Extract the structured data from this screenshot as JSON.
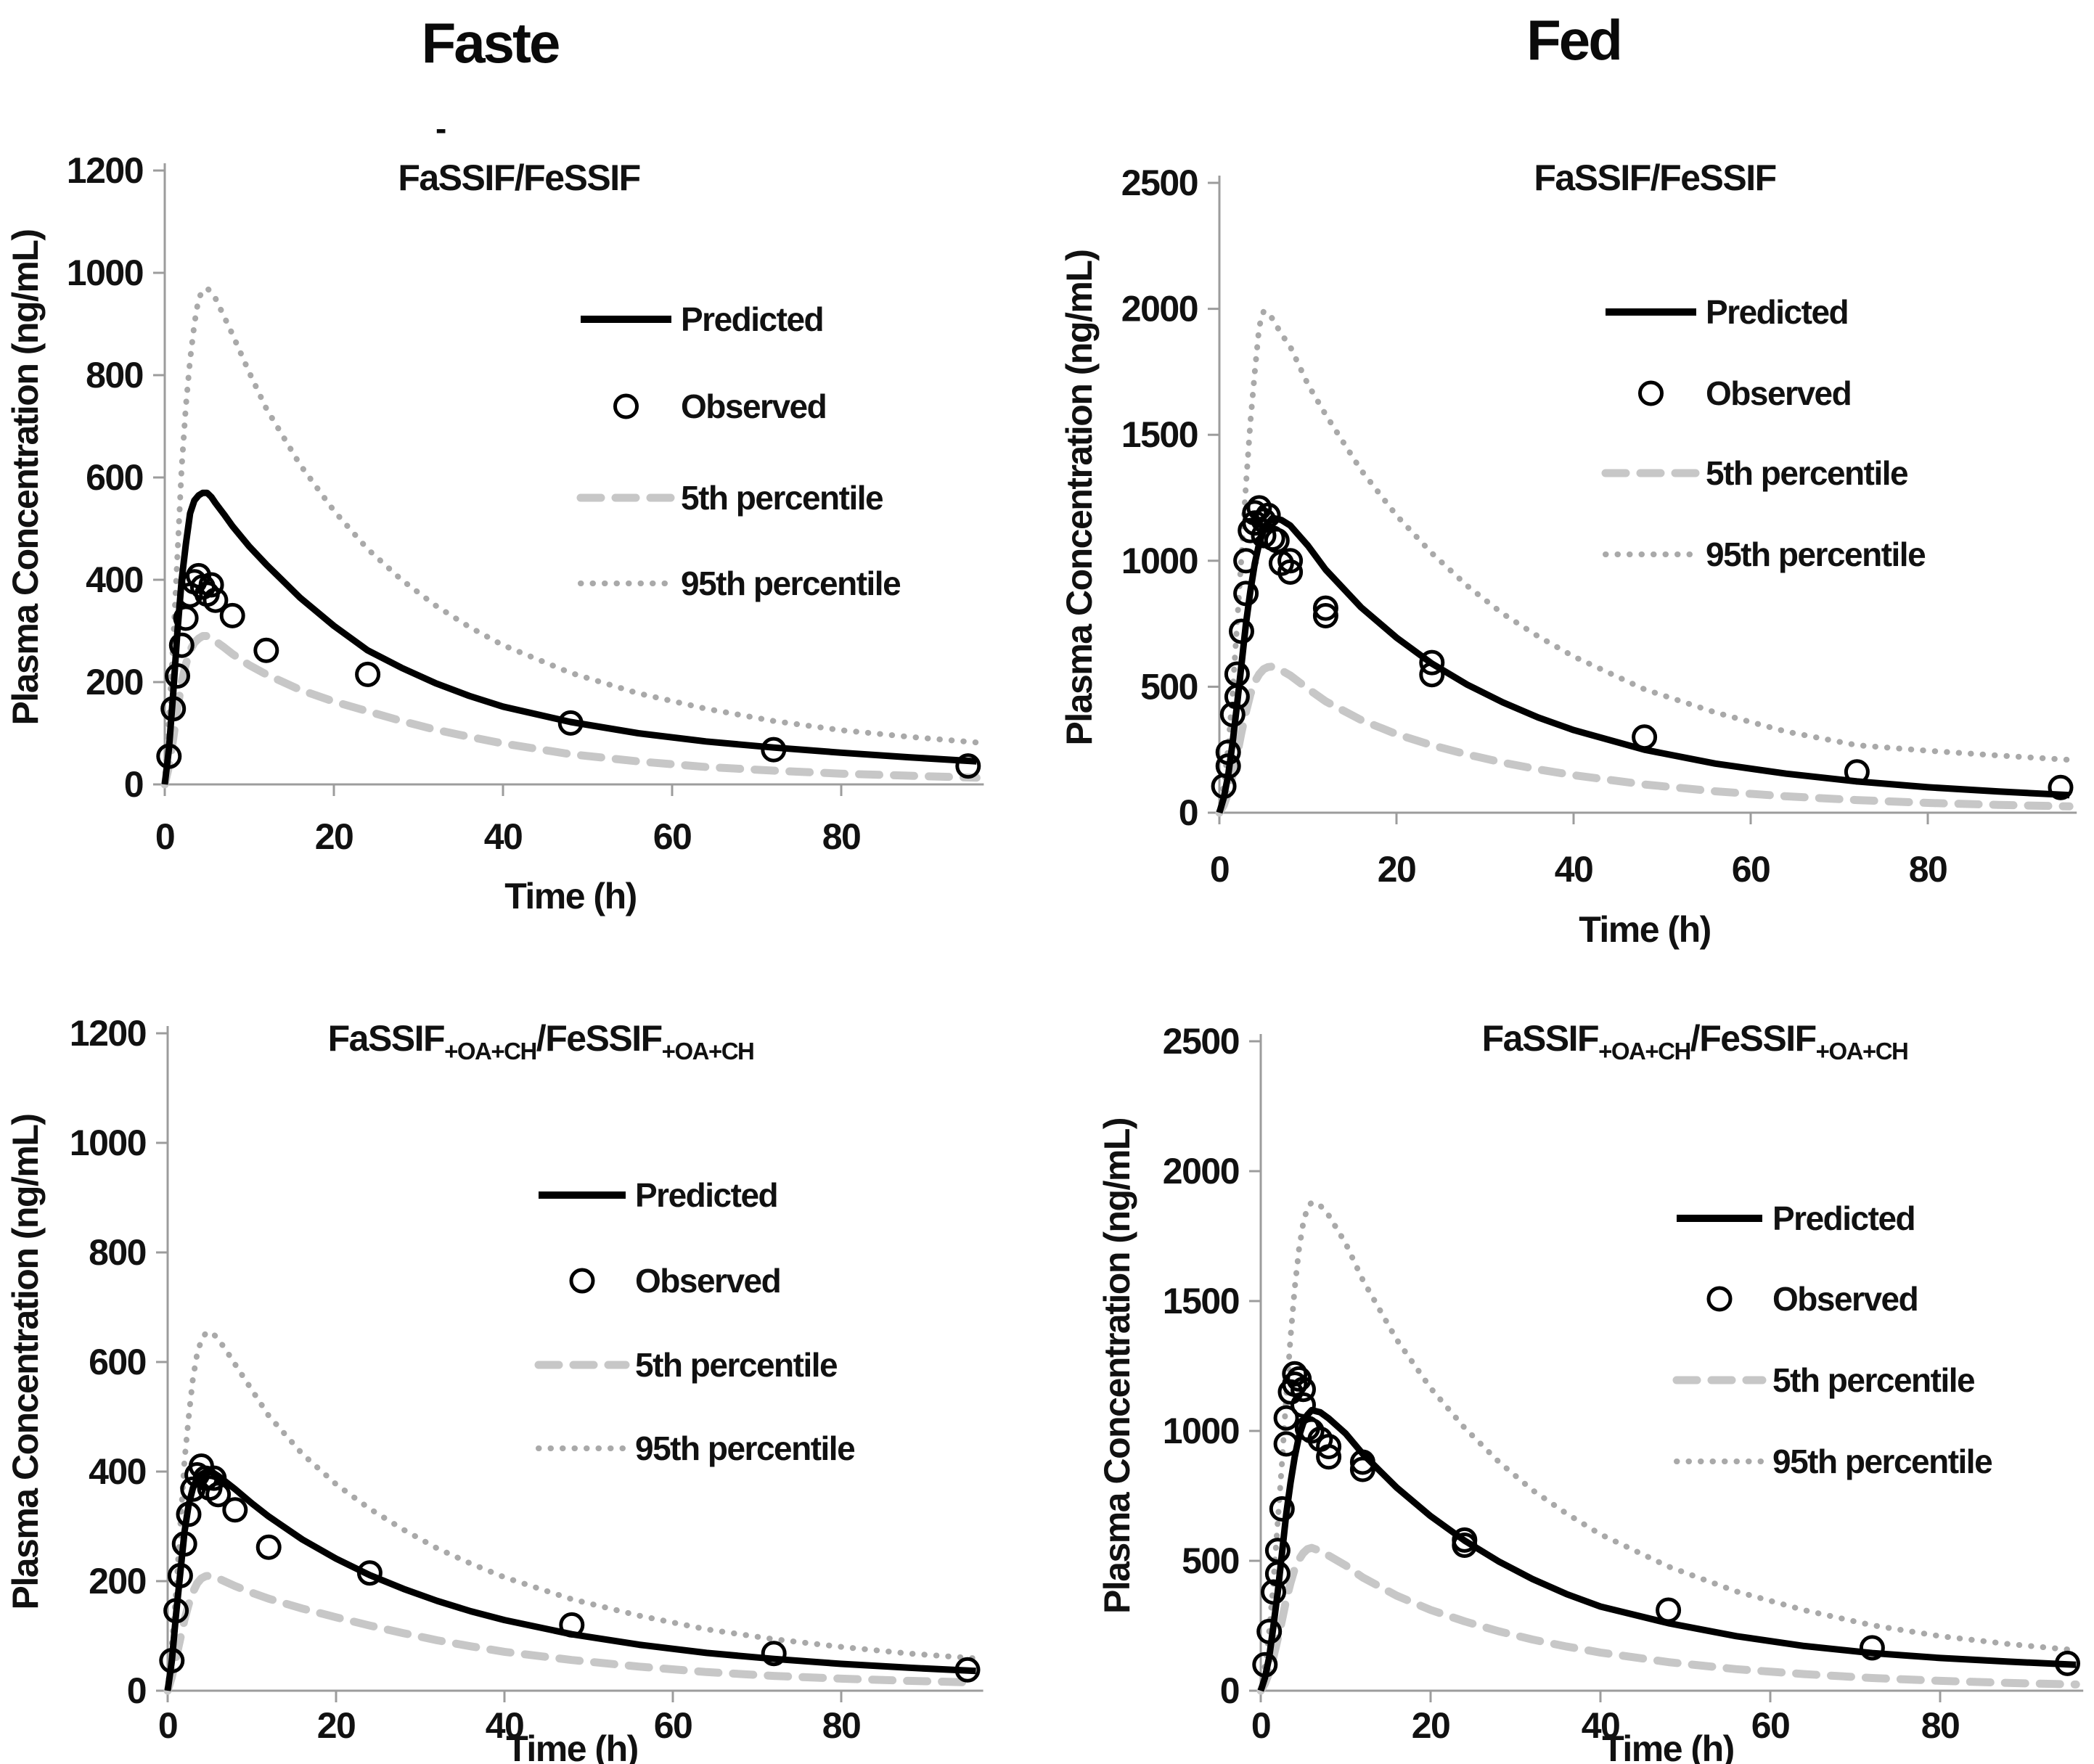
{
  "page": {
    "column_headers": [
      {
        "label": "Faste"
      },
      {
        "label": "Fed"
      }
    ],
    "stray_mark": "-"
  },
  "legend": {
    "position": "center-right-of-plot",
    "items": [
      {
        "label": "Predicted",
        "style": "solid-black-line"
      },
      {
        "label": "Observed",
        "style": "open-circle"
      },
      {
        "label": "5th percentile",
        "style": "gray-dashed-line"
      },
      {
        "label": "95th percentile",
        "style": "gray-dotted-line"
      }
    ]
  },
  "colors": {
    "predicted": "#000000",
    "observed": "#000000",
    "p5": "#c7c7c7",
    "p95": "#a9a9a9",
    "axis": "#9c9c9c",
    "text": "#111111"
  },
  "chart_data": [
    {
      "id": "fasted-fassif-fessif",
      "type": "line",
      "column_header": "Faste",
      "title_parts": [
        {
          "text": "FaSSIF/FeSSIF",
          "sub": false
        }
      ],
      "xlabel": "Time (h)",
      "ylabel": "Plasma Concentration (ng/mL)",
      "xlim": [
        0,
        96
      ],
      "ylim": [
        0,
        1200
      ],
      "xticks": [
        0,
        20,
        40,
        60,
        80
      ],
      "yticks": [
        0,
        200,
        400,
        600,
        800,
        1000,
        1200
      ],
      "grid": false,
      "x": [
        0,
        0.5,
        1,
        1.5,
        2,
        2.5,
        3,
        3.5,
        4,
        4.5,
        5,
        5.5,
        6,
        7,
        8,
        10,
        12,
        16,
        20,
        24,
        28,
        32,
        36,
        40,
        48,
        56,
        64,
        72,
        80,
        88,
        96
      ],
      "series": [
        {
          "name": "Predicted",
          "style": "predicted",
          "values": [
            0,
            70,
            180,
            300,
            400,
            470,
            530,
            555,
            565,
            570,
            570,
            562,
            550,
            528,
            505,
            465,
            430,
            365,
            310,
            262,
            228,
            198,
            173,
            152,
            122,
            100,
            84,
            72,
            62,
            53,
            45
          ]
        },
        {
          "name": "5th percentile",
          "style": "p5",
          "values": [
            0,
            35,
            90,
            148,
            200,
            235,
            262,
            277,
            285,
            290,
            290,
            285,
            280,
            268,
            255,
            233,
            215,
            185,
            162,
            143,
            124,
            107,
            93,
            80,
            59,
            45,
            34,
            27,
            21,
            17,
            13
          ]
        },
        {
          "name": "95th percentile",
          "style": "p95",
          "values": [
            0,
            130,
            280,
            450,
            620,
            740,
            830,
            900,
            950,
            965,
            970,
            962,
            950,
            915,
            880,
            805,
            735,
            625,
            535,
            460,
            400,
            350,
            308,
            272,
            218,
            178,
            148,
            124,
            106,
            93,
            82
          ]
        }
      ],
      "observed": {
        "name": "Observed",
        "x": [
          0.5,
          1,
          1.5,
          2,
          2.5,
          3,
          3.5,
          4,
          4.5,
          5,
          5.5,
          6,
          8,
          12,
          24,
          48,
          72,
          95
        ],
        "y": [
          55,
          148,
          212,
          272,
          325,
          370,
          396,
          408,
          386,
          372,
          390,
          360,
          330,
          262,
          215,
          120,
          68,
          36
        ]
      }
    },
    {
      "id": "fed-fassif-fessif",
      "type": "line",
      "column_header": "Fed",
      "title_parts": [
        {
          "text": "FaSSIF/FeSSIF",
          "sub": false
        }
      ],
      "xlabel": "Time (h)",
      "ylabel": "Plasma Concentration (ng/mL)",
      "xlim": [
        0,
        96
      ],
      "ylim": [
        0,
        2500
      ],
      "xticks": [
        0,
        20,
        40,
        60,
        80
      ],
      "yticks": [
        0,
        500,
        1000,
        1500,
        2000,
        2500
      ],
      "grid": false,
      "x": [
        0,
        0.5,
        1,
        1.5,
        2,
        2.5,
        3,
        3.5,
        4,
        4.5,
        5,
        5.5,
        6,
        7,
        8,
        10,
        12,
        16,
        20,
        24,
        28,
        32,
        36,
        40,
        48,
        56,
        64,
        72,
        80,
        88,
        96
      ],
      "series": [
        {
          "name": "Predicted",
          "style": "predicted",
          "values": [
            0,
            60,
            150,
            280,
            430,
            590,
            750,
            880,
            990,
            1070,
            1120,
            1150,
            1170,
            1162,
            1140,
            1060,
            965,
            815,
            695,
            592,
            508,
            438,
            378,
            328,
            250,
            195,
            155,
            124,
            101,
            84,
            70
          ]
        },
        {
          "name": "5th percentile",
          "style": "p5",
          "values": [
            0,
            30,
            80,
            150,
            230,
            320,
            400,
            470,
            520,
            550,
            570,
            578,
            580,
            565,
            545,
            492,
            442,
            368,
            312,
            268,
            231,
            199,
            172,
            149,
            112,
            85,
            65,
            50,
            39,
            31,
            25
          ]
        },
        {
          "name": "95th percentile",
          "style": "p95",
          "values": [
            0,
            110,
            260,
            480,
            750,
            1020,
            1300,
            1550,
            1750,
            1930,
            1990,
            1985,
            1960,
            1900,
            1850,
            1700,
            1580,
            1360,
            1180,
            1030,
            900,
            790,
            700,
            620,
            490,
            398,
            322,
            268,
            246,
            227,
            210
          ]
        }
      ],
      "observed": {
        "name": "Observed",
        "x": [
          0.5,
          1,
          1,
          1.5,
          2,
          2,
          2.5,
          3,
          3,
          3.5,
          4,
          4,
          4.5,
          5,
          5,
          5.5,
          6,
          6.5,
          7,
          8,
          8,
          12,
          12,
          24,
          24,
          48,
          72,
          95
        ],
        "y": [
          105,
          185,
          240,
          390,
          460,
          550,
          720,
          870,
          1000,
          1120,
          1150,
          1190,
          1210,
          1160,
          1100,
          1180,
          1090,
          1080,
          990,
          1000,
          955,
          812,
          782,
          596,
          548,
          300,
          162,
          100
        ]
      }
    },
    {
      "id": "fasted-fassif-oa-ch",
      "type": "line",
      "column_header": "Faste",
      "title_parts": [
        {
          "text": "FaSSIF",
          "sub": false
        },
        {
          "text": "+OA+CH",
          "sub": true
        },
        {
          "text": "/FeSSIF",
          "sub": false
        },
        {
          "text": "+OA+CH",
          "sub": true
        }
      ],
      "xlabel": "Time (h)",
      "ylabel": "Plasma Concentration (ng/mL)",
      "xlim": [
        0,
        96
      ],
      "ylim": [
        0,
        1200
      ],
      "xticks": [
        0,
        20,
        40,
        60,
        80
      ],
      "yticks": [
        0,
        200,
        400,
        600,
        800,
        1000,
        1200
      ],
      "grid": false,
      "x": [
        0,
        0.5,
        1,
        1.5,
        2,
        2.5,
        3,
        3.5,
        4,
        4.5,
        5,
        5.5,
        6,
        7,
        8,
        10,
        12,
        16,
        20,
        24,
        28,
        32,
        36,
        40,
        48,
        56,
        64,
        72,
        80,
        88,
        96
      ],
      "series": [
        {
          "name": "Predicted",
          "style": "predicted",
          "values": [
            0,
            55,
            140,
            215,
            290,
            340,
            370,
            388,
            395,
            399,
            400,
            397,
            392,
            380,
            368,
            342,
            318,
            276,
            241,
            211,
            186,
            164,
            145,
            129,
            103,
            84,
            69,
            58,
            49,
            42,
            36
          ]
        },
        {
          "name": "5th percentile",
          "style": "p5",
          "values": [
            0,
            25,
            60,
            95,
            130,
            158,
            180,
            196,
            205,
            209,
            210,
            208,
            205,
            198,
            191,
            179,
            168,
            150,
            134,
            119,
            105,
            92,
            81,
            71,
            56,
            44,
            34,
            27,
            22,
            18,
            15
          ]
        },
        {
          "name": "95th percentile",
          "style": "p95",
          "values": [
            0,
            85,
            180,
            300,
            420,
            500,
            570,
            615,
            640,
            652,
            655,
            650,
            642,
            620,
            596,
            549,
            502,
            432,
            377,
            332,
            294,
            260,
            232,
            207,
            167,
            137,
            112,
            94,
            80,
            68,
            59
          ]
        }
      ],
      "observed": {
        "name": "Observed",
        "x": [
          0.5,
          1,
          1.5,
          2,
          2.5,
          3,
          3.5,
          4,
          4.5,
          5,
          5.5,
          6,
          8,
          12,
          24,
          48,
          72,
          95
        ],
        "y": [
          55,
          146,
          210,
          268,
          322,
          368,
          394,
          410,
          388,
          370,
          388,
          358,
          330,
          262,
          215,
          120,
          68,
          38
        ]
      }
    },
    {
      "id": "fed-fassif-oa-ch",
      "type": "line",
      "column_header": "Fed",
      "title_parts": [
        {
          "text": "FaSSIF",
          "sub": false
        },
        {
          "text": "+OA+CH",
          "sub": true
        },
        {
          "text": "/FeSSIF",
          "sub": false
        },
        {
          "text": "+OA+CH",
          "sub": true
        }
      ],
      "xlabel": "Time (h)",
      "ylabel": "Plasma Concentration (ng/mL)",
      "xlim": [
        0,
        96
      ],
      "ylim": [
        0,
        2500
      ],
      "xticks": [
        0,
        20,
        40,
        60,
        80
      ],
      "yticks": [
        0,
        500,
        1000,
        1500,
        2000,
        2500
      ],
      "grid": false,
      "x": [
        0,
        0.5,
        1,
        1.5,
        2,
        2.5,
        3,
        3.5,
        4,
        4.5,
        5,
        5.5,
        6,
        7,
        8,
        10,
        12,
        16,
        20,
        24,
        28,
        32,
        36,
        40,
        48,
        56,
        64,
        72,
        80,
        88,
        96
      ],
      "series": [
        {
          "name": "Predicted",
          "style": "predicted",
          "values": [
            0,
            50,
            130,
            250,
            380,
            530,
            680,
            800,
            900,
            980,
            1030,
            1062,
            1080,
            1072,
            1048,
            990,
            912,
            782,
            672,
            578,
            498,
            430,
            372,
            324,
            260,
            210,
            172,
            145,
            126,
            112,
            100
          ]
        },
        {
          "name": "5th percentile",
          "style": "p5",
          "values": [
            0,
            28,
            70,
            130,
            200,
            272,
            350,
            415,
            470,
            505,
            530,
            545,
            550,
            538,
            520,
            482,
            436,
            366,
            311,
            267,
            229,
            197,
            170,
            147,
            110,
            83,
            64,
            49,
            38,
            30,
            24
          ]
        },
        {
          "name": "95th percentile",
          "style": "p95",
          "values": [
            0,
            95,
            230,
            420,
            650,
            880,
            1130,
            1360,
            1550,
            1700,
            1800,
            1860,
            1880,
            1868,
            1830,
            1722,
            1582,
            1352,
            1165,
            1012,
            882,
            772,
            682,
            602,
            478,
            382,
            310,
            252,
            210,
            180,
            156
          ]
        }
      ],
      "observed": {
        "name": "Observed",
        "x": [
          0.5,
          1,
          1.5,
          2,
          2,
          2.5,
          3,
          3,
          3.5,
          4,
          4,
          4.5,
          5,
          5,
          5.5,
          6,
          7,
          8,
          8,
          12,
          12,
          24,
          24,
          48,
          72,
          95
        ],
        "y": [
          100,
          228,
          380,
          450,
          540,
          700,
          950,
          1050,
          1150,
          1180,
          1220,
          1200,
          1160,
          1100,
          1010,
          1000,
          968,
          940,
          900,
          880,
          852,
          580,
          560,
          310,
          165,
          105
        ]
      }
    }
  ]
}
